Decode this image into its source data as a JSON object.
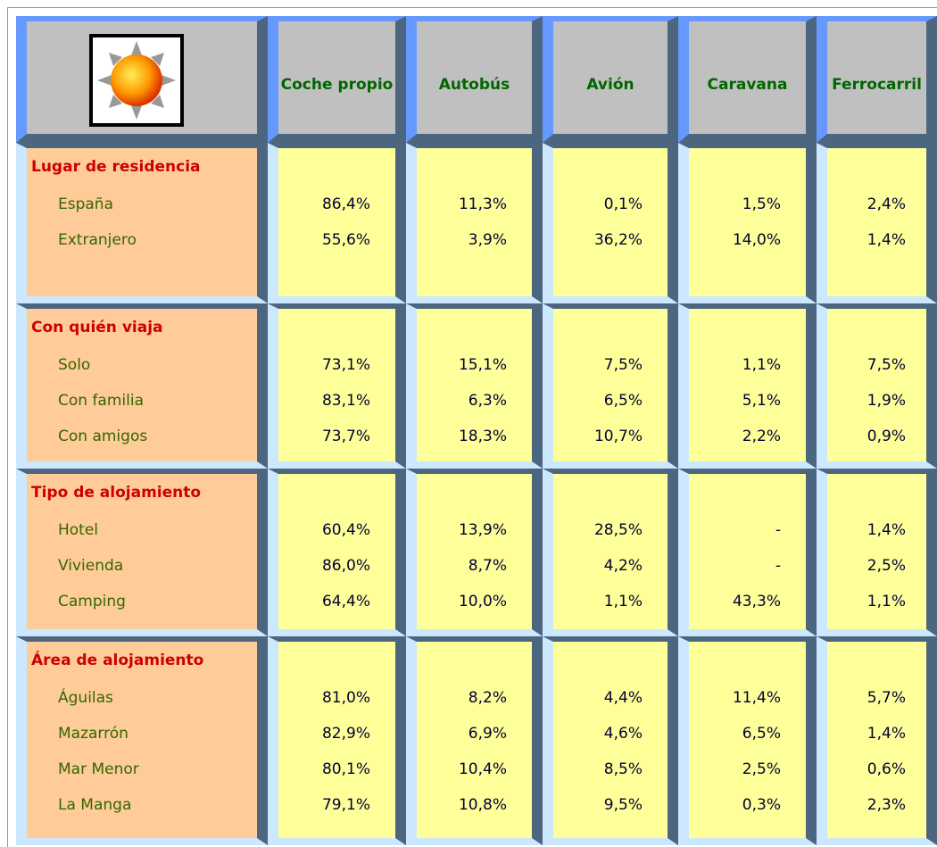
{
  "header": {
    "columns": [
      "Coche propio",
      "Autobús",
      "Avión",
      "Caravana",
      "Ferrocarril"
    ]
  },
  "groups": [
    {
      "title": "Lugar de residencia",
      "rows": [
        {
          "label": "España",
          "values": [
            "86,4%",
            "11,3%",
            "0,1%",
            "1,5%",
            "2,4%"
          ]
        },
        {
          "label": "Extranjero",
          "values": [
            "55,6%",
            "3,9%",
            "36,2%",
            "14,0%",
            "1,4%"
          ]
        }
      ]
    },
    {
      "title": "Con quién viaja",
      "rows": [
        {
          "label": "Solo",
          "values": [
            "73,1%",
            "15,1%",
            "7,5%",
            "1,1%",
            "7,5%"
          ]
        },
        {
          "label": "Con familia",
          "values": [
            "83,1%",
            "6,3%",
            "6,5%",
            "5,1%",
            "1,9%"
          ]
        },
        {
          "label": "Con amigos",
          "values": [
            "73,7%",
            "18,3%",
            "10,7%",
            "2,2%",
            "0,9%"
          ]
        }
      ]
    },
    {
      "title": "Tipo de alojamiento",
      "rows": [
        {
          "label": "Hotel",
          "values": [
            "60,4%",
            "13,9%",
            "28,5%",
            "-",
            "1,4%"
          ]
        },
        {
          "label": "Vivienda",
          "values": [
            "86,0%",
            "8,7%",
            "4,2%",
            "-",
            "2,5%"
          ]
        },
        {
          "label": "Camping",
          "values": [
            "64,4%",
            "10,0%",
            "1,1%",
            "43,3%",
            "1,1%"
          ]
        }
      ]
    },
    {
      "title": "Área de alojamiento",
      "rows": [
        {
          "label": "Águilas",
          "values": [
            "81,0%",
            "8,2%",
            "4,4%",
            "11,4%",
            "5,7%"
          ]
        },
        {
          "label": "Mazarrón",
          "values": [
            "82,9%",
            "6,9%",
            "4,6%",
            "6,5%",
            "1,4%"
          ]
        },
        {
          "label": "Mar Menor",
          "values": [
            "80,1%",
            "10,4%",
            "8,5%",
            "2,5%",
            "0,6%"
          ]
        },
        {
          "label": "La Manga",
          "values": [
            "79,1%",
            "10,8%",
            "9,5%",
            "0,3%",
            "2,3%"
          ]
        }
      ]
    }
  ]
}
